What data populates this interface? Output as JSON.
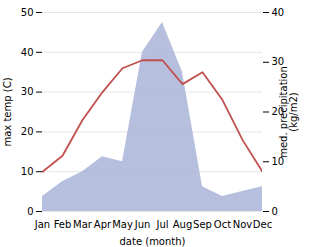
{
  "chart_data": {
    "type": "line",
    "xlabel": "date (month)",
    "ylabel": "max temp (C)",
    "y2label": "med. precipitation\n(kg/m2)",
    "categories": [
      "Jan",
      "Feb",
      "Mar",
      "Apr",
      "May",
      "Jun",
      "Jul",
      "Aug",
      "Sep",
      "Oct",
      "Nov",
      "Dec"
    ],
    "series": [
      {
        "type": "area",
        "axis": "y2",
        "color": "#aab4d8",
        "values": [
          3,
          6,
          8,
          11,
          10,
          32,
          38,
          28,
          5,
          3,
          4,
          5
        ]
      },
      {
        "type": "line",
        "axis": "y",
        "color": "#c0504d",
        "values": [
          10,
          14,
          23,
          30,
          36,
          38,
          38,
          32,
          35,
          28,
          18,
          10
        ]
      }
    ],
    "ylim": [
      0,
      50
    ],
    "yticks": [
      0,
      10,
      20,
      30,
      40,
      50
    ],
    "y2lim": [
      0,
      40
    ],
    "y2ticks": [
      0,
      10,
      20,
      30,
      40
    ],
    "grid": true
  }
}
